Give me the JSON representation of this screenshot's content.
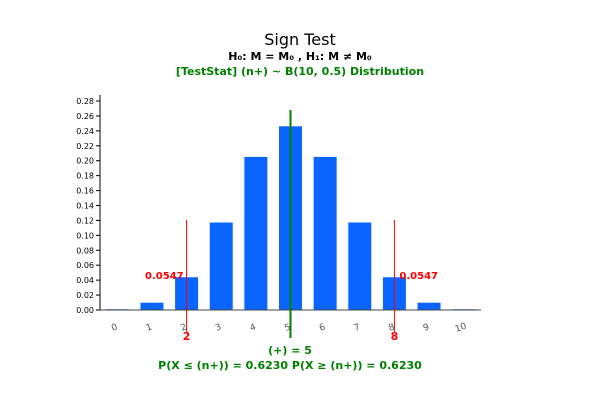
{
  "header": {
    "title": "Sign Test",
    "hypothesis": "H₀: M = M₀ , H₁: M ≠ M₀",
    "distribution": "[TestStat] (n+) ~ B(10, 0.5) Distribution"
  },
  "footer": {
    "statistic": "(+) = 5",
    "probabilities": "P(X ≤ (n+)) = 0.6230   P(X ≥ (n+)) = 0.6230"
  },
  "chart_data": {
    "type": "bar",
    "categories": [
      "0",
      "1",
      "2",
      "3",
      "4",
      "5",
      "6",
      "7",
      "8",
      "9",
      "10"
    ],
    "values": [
      0.001,
      0.0098,
      0.0439,
      0.1172,
      0.2051,
      0.2461,
      0.2051,
      0.1172,
      0.0439,
      0.0098,
      0.001
    ],
    "yticks": [
      "0.00",
      "0.02",
      "0.04",
      "0.06",
      "0.08",
      "0.10",
      "0.12",
      "0.14",
      "0.16",
      "0.18",
      "0.20",
      "0.22",
      "0.24",
      "0.26",
      "0.28"
    ],
    "ylim": [
      0,
      0.28
    ],
    "critical_lines": [
      {
        "x": 2,
        "label": "2",
        "tail_prob": "0.0547",
        "color": "#ff0000"
      },
      {
        "x": 8,
        "label": "8",
        "tail_prob": "0.0547",
        "color": "#ff0000"
      }
    ],
    "statistic_line": {
      "x": 5,
      "color": "#008000"
    },
    "bar_color": "#0a64ff",
    "axis_color": "#000000"
  }
}
